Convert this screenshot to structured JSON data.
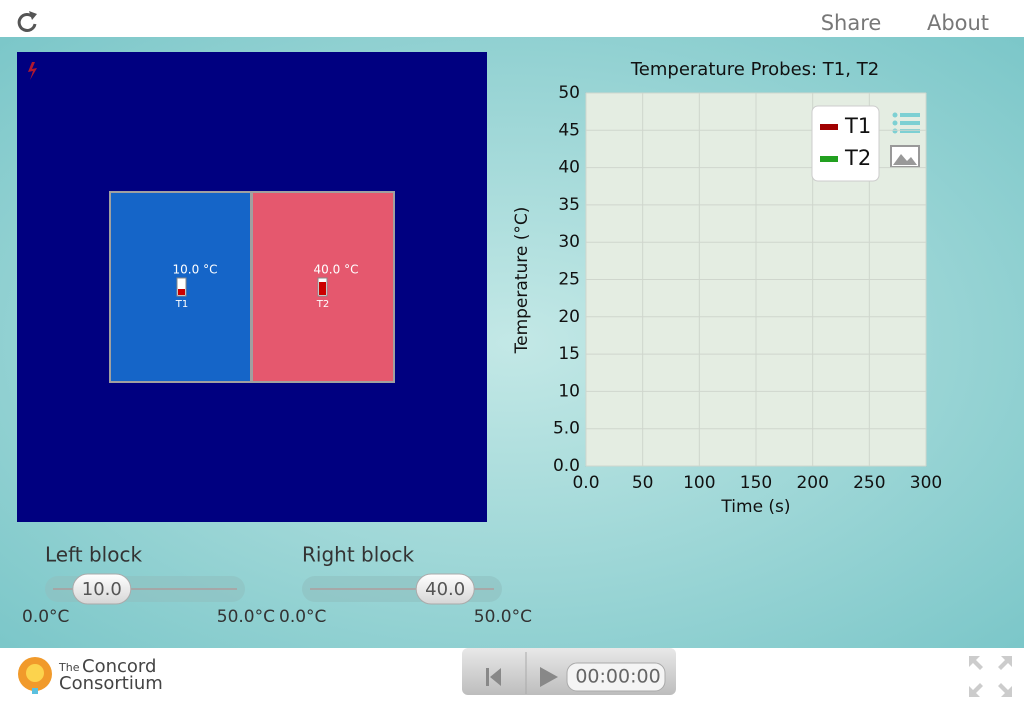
{
  "header": {
    "share": "Share",
    "about": "About"
  },
  "simulation": {
    "left_block": {
      "temperature": "10.0 °C",
      "probe": "T1"
    },
    "right_block": {
      "temperature": "40.0 °C",
      "probe": "T2"
    }
  },
  "chart_data": {
    "type": "line",
    "title": "Temperature Probes: T1, T2",
    "x_label": "Time (s)",
    "y_label": "Temperature (°C)",
    "x": [],
    "series": [
      {
        "name": "T1",
        "color": "#a00000",
        "values": []
      },
      {
        "name": "T2",
        "color": "#22a020",
        "values": []
      }
    ],
    "xlim": [
      0,
      300
    ],
    "xticks": [
      {
        "value": 0,
        "label": "0.0"
      },
      50,
      100,
      150,
      200,
      250,
      300
    ],
    "ylim": [
      0,
      50
    ],
    "yticks": [
      {
        "value": 0,
        "label": "0.0"
      },
      {
        "value": 5,
        "label": "5.0"
      },
      10,
      15,
      20,
      25,
      30,
      35,
      40,
      45,
      50
    ],
    "grid": true,
    "legend": "top-right"
  },
  "sliders": [
    {
      "label": "Left block",
      "value": {
        "value": 10,
        "label": "10.0"
      },
      "min": {
        "value": 0,
        "label": "0.0°C"
      },
      "max": {
        "value": 50,
        "label": "50.0°C"
      }
    },
    {
      "label": "Right block",
      "value": {
        "value": 40,
        "label": "40.0"
      },
      "min": {
        "value": 0,
        "label": "0.0°C"
      },
      "max": {
        "value": 50,
        "label": "50.0°C"
      }
    }
  ],
  "footer": {
    "logo_small": "The",
    "logo_line1": "Concord",
    "logo_line2": "Consortium",
    "time": "00:00:00"
  }
}
